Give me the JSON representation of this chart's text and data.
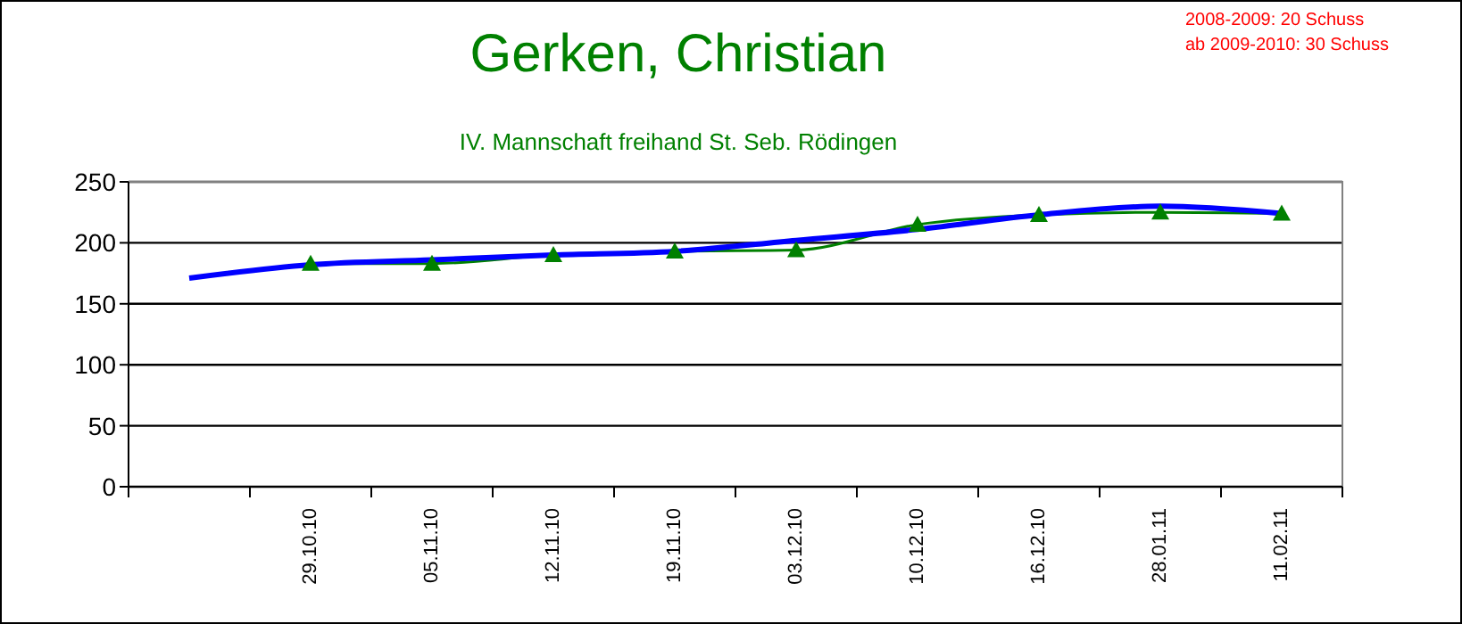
{
  "chart_data": {
    "type": "line",
    "title": "Gerken, Christian",
    "subtitle": "IV. Mannschaft freihand St. Seb. Rödingen",
    "annotations": [
      "2008-2009: 20 Schuss",
      "ab 2009-2010: 30 Schuss"
    ],
    "categories": [
      null,
      "29.10.10",
      "05.11.10",
      "12.11.10",
      "19.11.10",
      "03.12.10",
      "10.12.10",
      "16.12.10",
      "28.01.11",
      "11.02.11"
    ],
    "series": [
      {
        "color": "#008000",
        "marker": "triangle",
        "values": [
          null,
          183,
          183,
          190,
          193,
          194,
          215,
          223,
          225,
          224
        ]
      },
      {
        "color": "#0000ff",
        "marker": "none",
        "values": [
          171,
          182,
          186,
          190,
          193,
          202,
          211,
          223,
          230,
          224
        ]
      }
    ],
    "ylim": [
      0,
      250
    ],
    "yticks": [
      0,
      50,
      100,
      150,
      200,
      250
    ],
    "grid": "y"
  }
}
